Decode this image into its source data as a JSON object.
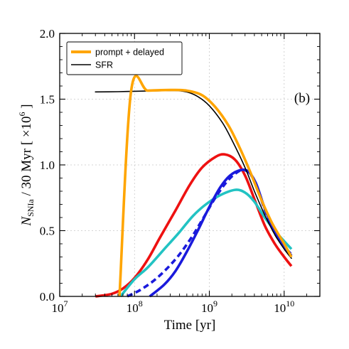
{
  "chart_data": {
    "type": "line",
    "title": "",
    "panel_label": "(b)",
    "xlabel": "Time [yr]",
    "ylabel_parts": {
      "n": "N",
      "n_sub": "SNIa",
      "mid": " / 30 Myr [ ×10",
      "exp": "6",
      "end": " ]"
    },
    "xscale": "log",
    "xlim": [
      10000000.0,
      30000000000.0
    ],
    "ylim": [
      0.0,
      2.0
    ],
    "x_ticks": [
      {
        "value": 10000000.0,
        "base": "10",
        "exp": "7"
      },
      {
        "value": 100000000.0,
        "base": "10",
        "exp": "8"
      },
      {
        "value": 1000000000.0,
        "base": "10",
        "exp": "9"
      },
      {
        "value": 10000000000.0,
        "base": "10",
        "exp": "10"
      }
    ],
    "y_ticks": [
      {
        "value": 0.0,
        "label": "0.0"
      },
      {
        "value": 0.5,
        "label": "0.5"
      },
      {
        "value": 1.0,
        "label": "1.0"
      },
      {
        "value": 1.5,
        "label": "1.5"
      },
      {
        "value": 2.0,
        "label": "2.0"
      }
    ],
    "grid": true,
    "legend_position": "top-left",
    "series": [
      {
        "name": "prompt + delayed",
        "color": "#ffa500",
        "style": "solid",
        "in_legend": true,
        "points": [
          [
            63000000.0,
            0.0
          ],
          [
            90000000.0,
            1.56
          ],
          [
            150000000.0,
            1.565
          ],
          [
            300000000.0,
            1.57
          ],
          [
            500000000.0,
            1.565
          ],
          [
            800000000.0,
            1.53
          ],
          [
            1200000000.0,
            1.44
          ],
          [
            1800000000.0,
            1.3
          ],
          [
            2500000000.0,
            1.14
          ],
          [
            3500000000.0,
            0.95
          ],
          [
            5000000000.0,
            0.73
          ],
          [
            7000000000.0,
            0.55
          ],
          [
            10000000000.0,
            0.4
          ],
          [
            12500000000.0,
            0.3
          ]
        ]
      },
      {
        "name": "SFR",
        "color": "#000000",
        "style": "solid",
        "in_legend": true,
        "points": [
          [
            30000000.0,
            1.555
          ],
          [
            60000000.0,
            1.557
          ],
          [
            100000000.0,
            1.56
          ],
          [
            200000000.0,
            1.563
          ],
          [
            350000000.0,
            1.565
          ],
          [
            500000000.0,
            1.555
          ],
          [
            700000000.0,
            1.52
          ],
          [
            1000000000.0,
            1.45
          ],
          [
            1500000000.0,
            1.32
          ],
          [
            2000000000.0,
            1.19
          ],
          [
            3000000000.0,
            0.98
          ],
          [
            4000000000.0,
            0.8
          ],
          [
            5500000000.0,
            0.62
          ],
          [
            7500000000.0,
            0.47
          ],
          [
            10000000000.0,
            0.36
          ],
          [
            12500000000.0,
            0.29
          ]
        ]
      },
      {
        "color": "#ee1111",
        "style": "solid",
        "in_legend": false,
        "points": [
          [
            30000000.0,
            0.0
          ],
          [
            50000000.0,
            0.02
          ],
          [
            70000000.0,
            0.06
          ],
          [
            100000000.0,
            0.14
          ],
          [
            150000000.0,
            0.28
          ],
          [
            220000000.0,
            0.45
          ],
          [
            350000000.0,
            0.65
          ],
          [
            550000000.0,
            0.85
          ],
          [
            800000000.0,
            0.98
          ],
          [
            1200000000.0,
            1.06
          ],
          [
            1600000000.0,
            1.08
          ],
          [
            2200000000.0,
            1.04
          ],
          [
            3000000000.0,
            0.92
          ],
          [
            4000000000.0,
            0.74
          ],
          [
            5500000000.0,
            0.54
          ],
          [
            7500000000.0,
            0.4
          ],
          [
            10000000000.0,
            0.3
          ],
          [
            12500000000.0,
            0.23
          ]
        ]
      },
      {
        "color": "#22c3c3",
        "style": "solid",
        "in_legend": false,
        "points": [
          [
            65000000.0,
            0.0
          ],
          [
            100000000.0,
            0.13
          ],
          [
            150000000.0,
            0.22
          ],
          [
            250000000.0,
            0.36
          ],
          [
            400000000.0,
            0.49
          ],
          [
            600000000.0,
            0.61
          ],
          [
            900000000.0,
            0.7
          ],
          [
            1400000000.0,
            0.77
          ],
          [
            2200000000.0,
            0.81
          ],
          [
            3000000000.0,
            0.79
          ],
          [
            4000000000.0,
            0.72
          ],
          [
            5500000000.0,
            0.6
          ],
          [
            7500000000.0,
            0.5
          ],
          [
            10000000000.0,
            0.42
          ],
          [
            12500000000.0,
            0.36
          ]
        ]
      },
      {
        "color": "#1a1adc",
        "style": "dashed",
        "in_legend": false,
        "points": [
          [
            80000000.0,
            0.0
          ],
          [
            120000000.0,
            0.05
          ],
          [
            200000000.0,
            0.14
          ],
          [
            350000000.0,
            0.28
          ],
          [
            550000000.0,
            0.43
          ],
          [
            800000000.0,
            0.58
          ],
          [
            1200000000.0,
            0.75
          ],
          [
            1700000000.0,
            0.87
          ],
          [
            2300000000.0,
            0.94
          ],
          [
            3000000000.0,
            0.96
          ],
          [
            4000000000.0,
            0.88
          ],
          [
            5500000000.0,
            0.66
          ],
          [
            7500000000.0,
            0.48
          ],
          [
            10000000000.0,
            0.38
          ],
          [
            12500000000.0,
            0.32
          ]
        ]
      },
      {
        "color": "#1a1adc",
        "style": "solid",
        "in_legend": false,
        "points": [
          [
            160000000.0,
            0.0
          ],
          [
            250000000.0,
            0.09
          ],
          [
            350000000.0,
            0.19
          ],
          [
            500000000.0,
            0.34
          ],
          [
            700000000.0,
            0.5
          ],
          [
            1000000000.0,
            0.68
          ],
          [
            1400000000.0,
            0.83
          ],
          [
            1900000000.0,
            0.92
          ],
          [
            2600000000.0,
            0.96
          ],
          [
            3300000000.0,
            0.95
          ],
          [
            4200000000.0,
            0.86
          ],
          [
            5500000000.0,
            0.67
          ],
          [
            7500000000.0,
            0.49
          ],
          [
            10000000000.0,
            0.38
          ],
          [
            12500000000.0,
            0.31
          ]
        ]
      }
    ]
  }
}
